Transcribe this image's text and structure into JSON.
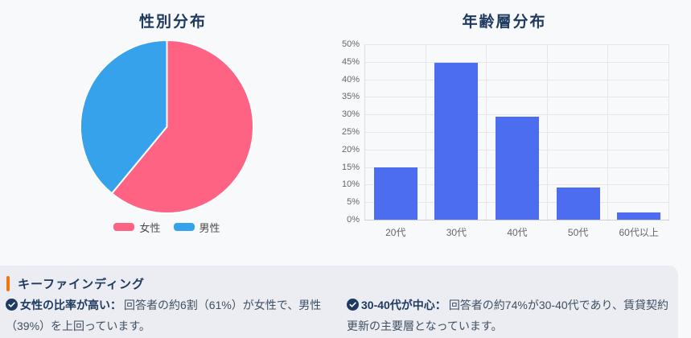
{
  "page": {
    "background_top": "#f8f9fb",
    "background_findings_panel": "#ebedf2"
  },
  "colors": {
    "title_navy": "#1f3a60",
    "body_text": "#3f5063",
    "tick_text": "#666666",
    "legend_text": "#4a4a4a",
    "grid": "#e7e7e9",
    "accent_orange": "#ee760d",
    "check_icon_navy": "#1f3a60",
    "pie_female_pink": "#FF6384",
    "pie_male_blue": "#36A2EB",
    "bar_blue": "#4d6df0"
  },
  "chart_data": [
    {
      "type": "pie",
      "title": "性別分布",
      "labels": [
        "女性",
        "男性"
      ],
      "values": [
        61,
        39
      ],
      "colors": [
        "#FF6384",
        "#36A2EB"
      ],
      "start_angle_deg": 0,
      "direction": "clockwise",
      "slice_border_color": "#ffffff",
      "legend_position": "bottom"
    },
    {
      "type": "bar",
      "title": "年齢層分布",
      "categories": [
        "20代",
        "30代",
        "40代",
        "50代",
        "60代以上"
      ],
      "values": [
        15,
        44.8,
        29.4,
        9.2,
        2
      ],
      "bar_color": "#4d6df0",
      "ylim": [
        0,
        50
      ],
      "ytick_step": 5,
      "yticks": [
        "0%",
        "5%",
        "10%",
        "15%",
        "20%",
        "25%",
        "30%",
        "35%",
        "40%",
        "45%",
        "50%"
      ],
      "grid": true,
      "legend_position": "none"
    }
  ],
  "findings": {
    "title": "キーファインディング",
    "items": [
      {
        "icon": "check-circle-icon",
        "label": "女性の比率が高い：",
        "text": "回答者の約6割（61%）が女性で、男性（39%）を上回っています。"
      },
      {
        "icon": "check-circle-icon",
        "label": "30-40代が中心：",
        "text": "回答者の約74%が30-40代であり、賃貸契約更新の主要層となっています。"
      }
    ]
  }
}
